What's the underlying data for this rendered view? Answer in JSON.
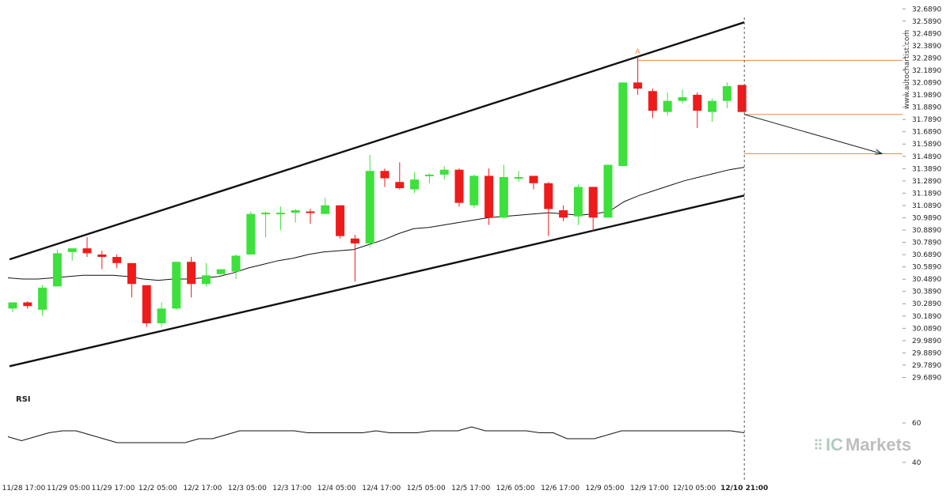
{
  "chart_data": {
    "type": "candlestick",
    "y_ticks": [
      "32.6890",
      "32.5890",
      "32.4890",
      "32.3890",
      "32.2890",
      "32.1890",
      "32.0890",
      "31.9890",
      "31.8890",
      "31.7890",
      "31.6890",
      "31.5890",
      "31.4890",
      "31.3890",
      "31.2890",
      "31.1890",
      "31.0890",
      "30.9890",
      "30.8890",
      "30.7890",
      "30.6890",
      "30.5890",
      "30.4890",
      "30.3890",
      "30.2890",
      "30.1890",
      "30.0890",
      "29.9890",
      "29.8890",
      "29.7890",
      "29.6890"
    ],
    "ylim": [
      29.66,
      32.71
    ],
    "x_labels": [
      "11/28 17:00",
      "11/29 05:00",
      "11/29 17:00",
      "12/2 05:00",
      "12/2 17:00",
      "12/3 05:00",
      "12/3 17:00",
      "12/4 05:00",
      "12/4 17:00",
      "12/5 05:00",
      "12/5 17:00",
      "12/6 05:00",
      "12/6 17:00",
      "12/9 05:00",
      "12/9 17:00",
      "12/10 05:00",
      "12/10 21:00"
    ],
    "x_label_bold_last": true,
    "candles": [
      {
        "o": 30.25,
        "h": 30.3,
        "l": 30.22,
        "c": 30.3
      },
      {
        "o": 30.3,
        "h": 30.31,
        "l": 30.25,
        "c": 30.27
      },
      {
        "o": 30.24,
        "h": 30.44,
        "l": 30.19,
        "c": 30.42
      },
      {
        "o": 30.43,
        "h": 30.73,
        "l": 30.43,
        "c": 30.7
      },
      {
        "o": 30.71,
        "h": 30.73,
        "l": 30.64,
        "c": 30.74
      },
      {
        "o": 30.74,
        "h": 30.83,
        "l": 30.67,
        "c": 30.7
      },
      {
        "o": 30.69,
        "h": 30.72,
        "l": 30.57,
        "c": 30.67
      },
      {
        "o": 30.67,
        "h": 30.69,
        "l": 30.58,
        "c": 30.62
      },
      {
        "o": 30.62,
        "h": 30.62,
        "l": 30.34,
        "c": 30.45
      },
      {
        "o": 30.44,
        "h": 30.44,
        "l": 30.1,
        "c": 30.13
      },
      {
        "o": 30.13,
        "h": 30.3,
        "l": 30.1,
        "c": 30.25
      },
      {
        "o": 30.25,
        "h": 30.63,
        "l": 30.24,
        "c": 30.63
      },
      {
        "o": 30.63,
        "h": 30.67,
        "l": 30.34,
        "c": 30.45
      },
      {
        "o": 30.45,
        "h": 30.62,
        "l": 30.43,
        "c": 30.52
      },
      {
        "o": 30.53,
        "h": 30.57,
        "l": 30.53,
        "c": 30.57
      },
      {
        "o": 30.55,
        "h": 30.69,
        "l": 30.49,
        "c": 30.68
      },
      {
        "o": 30.69,
        "h": 31.04,
        "l": 30.69,
        "c": 31.02
      },
      {
        "o": 31.02,
        "h": 31.04,
        "l": 30.83,
        "c": 31.03
      },
      {
        "o": 31.03,
        "h": 31.08,
        "l": 30.89,
        "c": 31.03
      },
      {
        "o": 31.03,
        "h": 31.06,
        "l": 30.95,
        "c": 31.05
      },
      {
        "o": 31.04,
        "h": 31.06,
        "l": 30.94,
        "c": 31.03
      },
      {
        "o": 31.02,
        "h": 31.15,
        "l": 31.02,
        "c": 31.09
      },
      {
        "o": 31.09,
        "h": 31.09,
        "l": 30.82,
        "c": 30.84
      },
      {
        "o": 30.82,
        "h": 30.85,
        "l": 30.47,
        "c": 30.78
      },
      {
        "o": 30.78,
        "h": 31.5,
        "l": 30.75,
        "c": 31.37
      },
      {
        "o": 31.37,
        "h": 31.39,
        "l": 31.24,
        "c": 31.31
      },
      {
        "o": 31.28,
        "h": 31.44,
        "l": 31.22,
        "c": 31.23
      },
      {
        "o": 31.22,
        "h": 31.36,
        "l": 31.19,
        "c": 31.3
      },
      {
        "o": 31.33,
        "h": 31.35,
        "l": 31.27,
        "c": 31.34
      },
      {
        "o": 31.34,
        "h": 31.41,
        "l": 31.3,
        "c": 31.38
      },
      {
        "o": 31.38,
        "h": 31.39,
        "l": 31.08,
        "c": 31.11
      },
      {
        "o": 31.09,
        "h": 31.34,
        "l": 31.07,
        "c": 31.33
      },
      {
        "o": 31.33,
        "h": 31.39,
        "l": 30.93,
        "c": 30.99
      },
      {
        "o": 30.99,
        "h": 31.42,
        "l": 30.98,
        "c": 31.32
      },
      {
        "o": 31.32,
        "h": 31.37,
        "l": 31.28,
        "c": 31.32
      },
      {
        "o": 31.33,
        "h": 31.33,
        "l": 31.22,
        "c": 31.27
      },
      {
        "o": 31.27,
        "h": 31.28,
        "l": 30.84,
        "c": 31.06
      },
      {
        "o": 31.05,
        "h": 31.09,
        "l": 30.96,
        "c": 30.99
      },
      {
        "o": 31.0,
        "h": 31.26,
        "l": 30.93,
        "c": 31.24
      },
      {
        "o": 31.24,
        "h": 31.24,
        "l": 30.88,
        "c": 30.99
      },
      {
        "o": 30.99,
        "h": 31.42,
        "l": 30.99,
        "c": 31.42
      },
      {
        "o": 31.41,
        "h": 32.09,
        "l": 31.41,
        "c": 32.09
      },
      {
        "o": 32.09,
        "h": 32.3,
        "l": 31.99,
        "c": 32.04
      },
      {
        "o": 32.02,
        "h": 32.04,
        "l": 31.8,
        "c": 31.86
      },
      {
        "o": 31.85,
        "h": 32.01,
        "l": 31.82,
        "c": 31.94
      },
      {
        "o": 31.94,
        "h": 32.03,
        "l": 31.92,
        "c": 31.97
      },
      {
        "o": 31.99,
        "h": 32.01,
        "l": 31.72,
        "c": 31.86
      },
      {
        "o": 31.85,
        "h": 31.96,
        "l": 31.77,
        "c": 31.94
      },
      {
        "o": 31.94,
        "h": 32.09,
        "l": 31.88,
        "c": 32.06
      },
      {
        "o": 32.07,
        "h": 32.07,
        "l": 31.85,
        "c": 31.85
      }
    ],
    "ma_series": [
      30.5,
      30.49,
      30.49,
      30.5,
      30.51,
      30.52,
      30.52,
      30.52,
      30.51,
      30.49,
      30.48,
      30.49,
      30.49,
      30.5,
      30.51,
      30.54,
      30.58,
      30.61,
      30.64,
      30.66,
      30.69,
      30.71,
      30.72,
      30.73,
      30.77,
      30.81,
      30.86,
      30.9,
      30.91,
      30.93,
      30.95,
      30.97,
      30.99,
      31.0,
      31.01,
      31.02,
      31.03,
      31.02,
      31.01,
      31.02,
      31.04,
      31.12,
      31.17,
      31.21,
      31.25,
      31.29,
      31.32,
      31.35,
      31.38,
      31.4
    ],
    "channel": {
      "upper": {
        "start": 30.65,
        "end": 32.58
      },
      "lower": {
        "start": 29.78,
        "end": 31.17
      }
    },
    "levels": [
      {
        "name": "resistance",
        "value": 32.27,
        "color": "#e8894a"
      },
      {
        "name": "entry",
        "value": 31.83,
        "color": "#e8894a"
      },
      {
        "name": "target",
        "value": 31.51,
        "color": "#e8894a"
      }
    ],
    "projection": {
      "from": 31.83,
      "to": 31.51
    },
    "point_marker": {
      "label": "A",
      "value": 32.31,
      "color": "#e8894a"
    },
    "rsi": {
      "label": "RSI",
      "ticks": [
        "60",
        "40"
      ],
      "ylim": [
        38,
        66
      ],
      "values": [
        53,
        51,
        53,
        55,
        56,
        56,
        54,
        52,
        50,
        50,
        50,
        50,
        50,
        50,
        52,
        52,
        54,
        56,
        56,
        56,
        56,
        56,
        55,
        55,
        55,
        55,
        55,
        56,
        55,
        55,
        55,
        56,
        56,
        56,
        58,
        56,
        56,
        56,
        56,
        55,
        55,
        52,
        52,
        52,
        54,
        56,
        56,
        56,
        56,
        56,
        56,
        56,
        56,
        56,
        55
      ]
    },
    "colors": {
      "up": "#3de03d",
      "down": "#ee1b1b",
      "wick": "#222222",
      "channel": "#111111",
      "ma": "#111111"
    }
  },
  "watermark": "www.autochartist.com",
  "brand": {
    "ic": "IC",
    "markets": "Markets"
  }
}
